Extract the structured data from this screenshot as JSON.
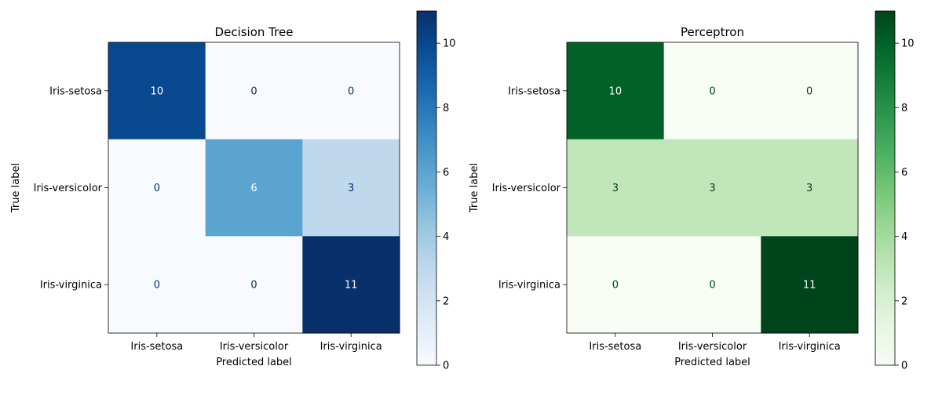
{
  "chart_data": [
    {
      "type": "heatmap",
      "title": "Decision Tree",
      "xlabel": "Predicted label",
      "ylabel": "True label",
      "x_categories": [
        "Iris-setosa",
        "Iris-versicolor",
        "Iris-virginica"
      ],
      "y_categories": [
        "Iris-setosa",
        "Iris-versicolor",
        "Iris-virginica"
      ],
      "values": [
        [
          10,
          0,
          0
        ],
        [
          0,
          6,
          3
        ],
        [
          0,
          0,
          11
        ]
      ],
      "colormap": "Blues",
      "colors": {
        "low": "#f7fbff",
        "high": "#08306b"
      },
      "colorbar": {
        "range": [
          0,
          11
        ],
        "ticks": [
          0,
          2,
          4,
          6,
          8,
          10
        ]
      }
    },
    {
      "type": "heatmap",
      "title": "Perceptron",
      "xlabel": "Predicted label",
      "ylabel": "True label",
      "x_categories": [
        "Iris-setosa",
        "Iris-versicolor",
        "Iris-virginica"
      ],
      "y_categories": [
        "Iris-setosa",
        "Iris-versicolor",
        "Iris-virginica"
      ],
      "values": [
        [
          10,
          0,
          0
        ],
        [
          3,
          3,
          3
        ],
        [
          0,
          0,
          11
        ]
      ],
      "colormap": "Greens",
      "colors": {
        "low": "#f7fcf5",
        "high": "#00441b"
      },
      "colorbar": {
        "range": [
          0,
          11
        ],
        "ticks": [
          0,
          2,
          4,
          6,
          8,
          10
        ]
      }
    }
  ]
}
